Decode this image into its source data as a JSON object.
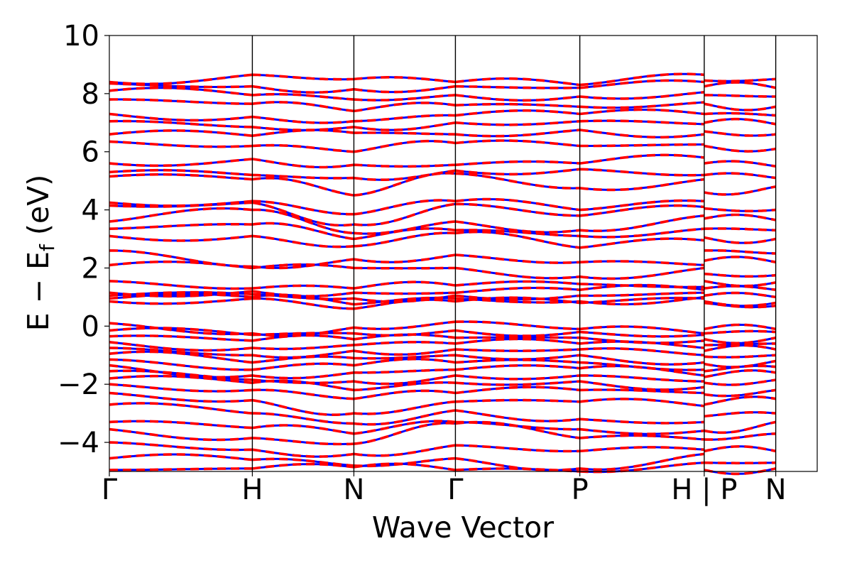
{
  "chart_data": {
    "type": "line",
    "title": "",
    "xlabel": "Wave Vector",
    "ylabel_main": "E − E",
    "ylabel_sub": "f",
    "ylabel_unit": " (eV)",
    "ylim": [
      -5,
      10
    ],
    "yticks": [
      -4,
      -2,
      0,
      2,
      4,
      6,
      8,
      10
    ],
    "ytick_labels": [
      "−4",
      "−2",
      "0",
      "2",
      "4",
      "6",
      "8",
      "10"
    ],
    "grid": false,
    "x_range": [
      0,
      4.95
    ],
    "kpoints": [
      {
        "label": "Γ",
        "x": 0
      },
      {
        "label": "H",
        "x": 1.0
      },
      {
        "label": "N",
        "x": 1.71
      },
      {
        "label": "Γ",
        "x": 2.42
      },
      {
        "label": "P",
        "x": 3.29
      },
      {
        "label": "H | P",
        "x": 4.16
      },
      {
        "label": "N",
        "x": 4.66
      }
    ],
    "series_style": [
      {
        "color": "#0000ff",
        "style": "solid"
      },
      {
        "color": "#ff0000",
        "style": "dashed"
      }
    ],
    "band_energies_at_kpoints": {
      "columns": [
        "Γ",
        "H",
        "N",
        "Γ",
        "P",
        "H",
        "P",
        "N"
      ],
      "bands": [
        [
          -4.95,
          -4.9,
          -4.85,
          -4.95,
          -5.0,
          -4.7,
          -4.95,
          -4.9
        ],
        [
          -4.55,
          -4.6,
          -4.8,
          -4.55,
          -4.9,
          -4.4,
          -4.7,
          -4.7
        ],
        [
          -4.0,
          -4.25,
          -4.4,
          -4.1,
          -4.3,
          -4.25,
          -4.3,
          -4.3
        ],
        [
          -3.55,
          -3.85,
          -4.05,
          -3.35,
          -3.85,
          -3.9,
          -3.9,
          -3.7
        ],
        [
          -3.3,
          -3.5,
          -3.7,
          -3.3,
          -3.55,
          -3.6,
          -3.6,
          -3.3
        ],
        [
          -2.7,
          -3.0,
          -3.35,
          -2.9,
          -3.2,
          -3.3,
          -3.1,
          -3.0
        ],
        [
          -2.3,
          -2.55,
          -3.0,
          -2.6,
          -2.6,
          -2.75,
          -2.7,
          -2.5
        ],
        [
          -2.0,
          -2.2,
          -2.5,
          -2.3,
          -2.2,
          -2.3,
          -2.35,
          -2.2
        ],
        [
          -1.8,
          -1.95,
          -2.2,
          -1.95,
          -1.9,
          -2.1,
          -1.95,
          -1.85
        ],
        [
          -1.55,
          -1.85,
          -1.9,
          -1.7,
          -1.7,
          -1.9,
          -1.75,
          -1.6
        ],
        [
          -1.35,
          -1.7,
          -1.6,
          -1.5,
          -1.45,
          -1.7,
          -1.55,
          -1.4
        ],
        [
          -1.15,
          -1.5,
          -1.35,
          -1.25,
          -1.25,
          -1.5,
          -1.3,
          -1.2
        ],
        [
          -0.95,
          -1.25,
          -1.1,
          -1.0,
          -1.0,
          -1.25,
          -1.05,
          -1.0
        ],
        [
          -0.75,
          -1.0,
          -0.85,
          -0.8,
          -0.8,
          -1.0,
          -0.85,
          -0.8
        ],
        [
          -0.55,
          -0.75,
          -0.65,
          -0.6,
          -0.6,
          -0.75,
          -0.65,
          -0.6
        ],
        [
          -0.35,
          -0.5,
          -0.45,
          -0.4,
          -0.4,
          -0.5,
          -0.45,
          -0.4
        ],
        [
          -0.15,
          -0.3,
          -0.25,
          -0.15,
          -0.2,
          -0.3,
          -0.25,
          -0.2
        ],
        [
          0.1,
          -0.25,
          -0.05,
          0.15,
          -0.1,
          -0.25,
          -0.1,
          -0.1
        ],
        [
          0.85,
          0.95,
          0.6,
          0.85,
          0.8,
          0.95,
          0.8,
          0.7
        ],
        [
          0.95,
          1.0,
          0.75,
          0.95,
          0.85,
          1.0,
          0.85,
          0.8
        ],
        [
          1.05,
          1.1,
          0.95,
          1.05,
          1.05,
          1.15,
          1.05,
          1.0
        ],
        [
          1.15,
          1.2,
          1.15,
          1.15,
          1.25,
          1.25,
          1.3,
          1.25
        ],
        [
          1.55,
          1.3,
          1.3,
          1.4,
          1.45,
          1.35,
          1.55,
          1.5
        ],
        [
          2.1,
          2.0,
          2.0,
          2.0,
          1.7,
          2.0,
          1.8,
          1.75
        ],
        [
          2.6,
          2.05,
          2.3,
          2.45,
          2.2,
          2.1,
          2.25,
          2.2
        ],
        [
          3.1,
          3.1,
          2.75,
          3.2,
          2.7,
          2.95,
          2.6,
          2.5
        ],
        [
          3.35,
          3.5,
          3.0,
          3.3,
          3.1,
          3.35,
          3.05,
          3.0
        ],
        [
          3.6,
          4.0,
          3.2,
          3.6,
          3.3,
          3.8,
          3.35,
          3.3
        ],
        [
          4.15,
          4.25,
          3.5,
          4.2,
          3.8,
          4.1,
          3.7,
          3.65
        ],
        [
          4.25,
          4.3,
          3.85,
          4.3,
          4.0,
          4.3,
          4.05,
          4.0
        ],
        [
          5.15,
          5.05,
          4.5,
          5.25,
          4.75,
          5.05,
          4.6,
          4.8
        ],
        [
          5.3,
          5.2,
          5.1,
          5.35,
          5.4,
          5.2,
          5.2,
          5.1
        ],
        [
          5.6,
          5.75,
          5.55,
          5.55,
          5.6,
          5.8,
          5.6,
          5.5
        ],
        [
          6.35,
          6.2,
          6.0,
          6.3,
          6.2,
          6.25,
          6.2,
          6.1
        ],
        [
          6.6,
          6.55,
          6.65,
          6.6,
          6.75,
          6.6,
          6.7,
          6.6
        ],
        [
          7.05,
          6.85,
          6.85,
          7.0,
          7.05,
          6.95,
          7.0,
          6.95
        ],
        [
          7.3,
          7.2,
          7.05,
          7.25,
          7.3,
          7.3,
          7.3,
          7.25
        ],
        [
          7.8,
          7.65,
          7.4,
          7.6,
          7.55,
          7.7,
          7.65,
          7.55
        ],
        [
          8.1,
          7.95,
          7.8,
          7.95,
          7.9,
          8.05,
          7.95,
          7.9
        ],
        [
          8.35,
          8.25,
          8.15,
          8.25,
          8.2,
          8.4,
          8.25,
          8.2
        ],
        [
          8.4,
          8.65,
          8.5,
          8.4,
          8.3,
          8.65,
          8.45,
          8.5
        ]
      ]
    }
  }
}
